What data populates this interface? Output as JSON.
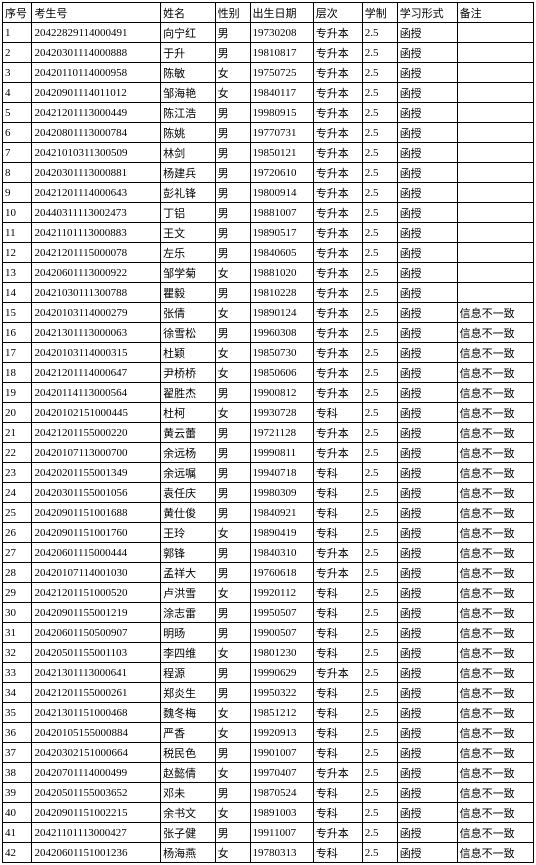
{
  "columns": [
    "序号",
    "考生号",
    "姓名",
    "性别",
    "出生日期",
    "层次",
    "学制",
    "学习形式",
    "备注"
  ],
  "rows": [
    [
      "1",
      "20422829114000491",
      "向宁红",
      "男",
      "19730208",
      "专升本",
      "2.5",
      "函授",
      ""
    ],
    [
      "2",
      "20420301114000888",
      "于升",
      "男",
      "19810817",
      "专升本",
      "2.5",
      "函授",
      ""
    ],
    [
      "3",
      "20420110114000958",
      "陈敏",
      "女",
      "19750725",
      "专升本",
      "2.5",
      "函授",
      ""
    ],
    [
      "4",
      "20420901114011012",
      "邹海艳",
      "女",
      "19840117",
      "专升本",
      "2.5",
      "函授",
      ""
    ],
    [
      "5",
      "20421201113000449",
      "陈江浩",
      "男",
      "19980915",
      "专升本",
      "2.5",
      "函授",
      ""
    ],
    [
      "6",
      "20420801113000784",
      "陈姚",
      "男",
      "19770731",
      "专升本",
      "2.5",
      "函授",
      ""
    ],
    [
      "7",
      "20421010311300509",
      "林剑",
      "男",
      "19850121",
      "专升本",
      "2.5",
      "函授",
      ""
    ],
    [
      "8",
      "20420301113000881",
      "杨建兵",
      "男",
      "19720610",
      "专升本",
      "2.5",
      "函授",
      ""
    ],
    [
      "9",
      "20421201114000643",
      "彭礼锋",
      "男",
      "19800914",
      "专升本",
      "2.5",
      "函授",
      ""
    ],
    [
      "10",
      "20440311113002473",
      "丁铝",
      "男",
      "19881007",
      "专升本",
      "2.5",
      "函授",
      ""
    ],
    [
      "11",
      "20421101113000883",
      "王文",
      "男",
      "19890517",
      "专升本",
      "2.5",
      "函授",
      ""
    ],
    [
      "12",
      "20421201115000078",
      "左乐",
      "男",
      "19840605",
      "专升本",
      "2.5",
      "函授",
      ""
    ],
    [
      "13",
      "20420601113000922",
      "邹学菊",
      "女",
      "19881020",
      "专升本",
      "2.5",
      "函授",
      ""
    ],
    [
      "14",
      "20421030111300788",
      "瞿毅",
      "男",
      "19810228",
      "专升本",
      "2.5",
      "函授",
      ""
    ],
    [
      "15",
      "20420103114000279",
      "张倩",
      "女",
      "19890124",
      "专升本",
      "2.5",
      "函授",
      "信息不一致"
    ],
    [
      "16",
      "20421301113000063",
      "徐雪松",
      "男",
      "19960308",
      "专升本",
      "2.5",
      "函授",
      "信息不一致"
    ],
    [
      "17",
      "20420103114000315",
      "杜颖",
      "女",
      "19850730",
      "专升本",
      "2.5",
      "函授",
      "信息不一致"
    ],
    [
      "18",
      "20421201114000647",
      "尹桥桥",
      "女",
      "19850606",
      "专升本",
      "2.5",
      "函授",
      "信息不一致"
    ],
    [
      "19",
      "20420114113000564",
      "翟胜杰",
      "男",
      "19900812",
      "专升本",
      "2.5",
      "函授",
      "信息不一致"
    ],
    [
      "20",
      "20420102151000445",
      "杜柯",
      "女",
      "19930728",
      "专科",
      "2.5",
      "函授",
      "信息不一致"
    ],
    [
      "21",
      "20421201155000220",
      "黄云蕾",
      "男",
      "19721128",
      "专升本",
      "2.5",
      "函授",
      "信息不一致"
    ],
    [
      "22",
      "20420107113000700",
      "余远杨",
      "男",
      "19990811",
      "专升本",
      "2.5",
      "函授",
      "信息不一致"
    ],
    [
      "23",
      "20420201155001349",
      "余远嘱",
      "男",
      "19940718",
      "专科",
      "2.5",
      "函授",
      "信息不一致"
    ],
    [
      "24",
      "20420301155001056",
      "袁任庆",
      "男",
      "19980309",
      "专科",
      "2.5",
      "函授",
      "信息不一致"
    ],
    [
      "25",
      "20420901151001688",
      "黄仕俊",
      "男",
      "19840921",
      "专科",
      "2.5",
      "函授",
      "信息不一致"
    ],
    [
      "26",
      "20420901151001760",
      "王玲",
      "女",
      "19890419",
      "专科",
      "2.5",
      "函授",
      "信息不一致"
    ],
    [
      "27",
      "20420601115000444",
      "郭锋",
      "男",
      "19840310",
      "专升本",
      "2.5",
      "函授",
      "信息不一致"
    ],
    [
      "28",
      "20420107114001030",
      "孟祥大",
      "男",
      "19760618",
      "专升本",
      "2.5",
      "函授",
      "信息不一致"
    ],
    [
      "29",
      "20421201151000520",
      "卢洪雪",
      "女",
      "19920112",
      "专科",
      "2.5",
      "函授",
      "信息不一致"
    ],
    [
      "30",
      "20420901155001219",
      "涂志雷",
      "男",
      "19950507",
      "专科",
      "2.5",
      "函授",
      "信息不一致"
    ],
    [
      "31",
      "20420601150500907",
      "明旸",
      "男",
      "19900507",
      "专科",
      "2.5",
      "函授",
      "信息不一致"
    ],
    [
      "32",
      "20420501155001103",
      "李四维",
      "女",
      "19801230",
      "专科",
      "2.5",
      "函授",
      "信息不一致"
    ],
    [
      "33",
      "20421301113000641",
      "程源",
      "男",
      "19990629",
      "专升本",
      "2.5",
      "函授",
      "信息不一致"
    ],
    [
      "34",
      "20421201155000261",
      "郑炎生",
      "男",
      "19950322",
      "专科",
      "2.5",
      "函授",
      "信息不一致"
    ],
    [
      "35",
      "20421301151000468",
      "魏冬梅",
      "女",
      "19851212",
      "专科",
      "2.5",
      "函授",
      "信息不一致"
    ],
    [
      "36",
      "20420105155000884",
      "严香",
      "女",
      "19920913",
      "专科",
      "2.5",
      "函授",
      "信息不一致"
    ],
    [
      "37",
      "20420302151000664",
      "税民色",
      "男",
      "19901007",
      "专科",
      "2.5",
      "函授",
      "信息不一致"
    ],
    [
      "38",
      "20420701114000499",
      "赵懿倩",
      "女",
      "19970407",
      "专升本",
      "2.5",
      "函授",
      "信息不一致"
    ],
    [
      "39",
      "20420501155003652",
      "邓未",
      "男",
      "19870524",
      "专科",
      "2.5",
      "函授",
      "信息不一致"
    ],
    [
      "40",
      "20420901151002215",
      "余书文",
      "女",
      "19891003",
      "专科",
      "2.5",
      "函授",
      "信息不一致"
    ],
    [
      "41",
      "20421101113000427",
      "张子健",
      "男",
      "19911007",
      "专升本",
      "2.5",
      "函授",
      "信息不一致"
    ],
    [
      "42",
      "20420601151001236",
      "杨海燕",
      "女",
      "19780313",
      "专科",
      "2.5",
      "函授",
      "信息不一致"
    ]
  ]
}
